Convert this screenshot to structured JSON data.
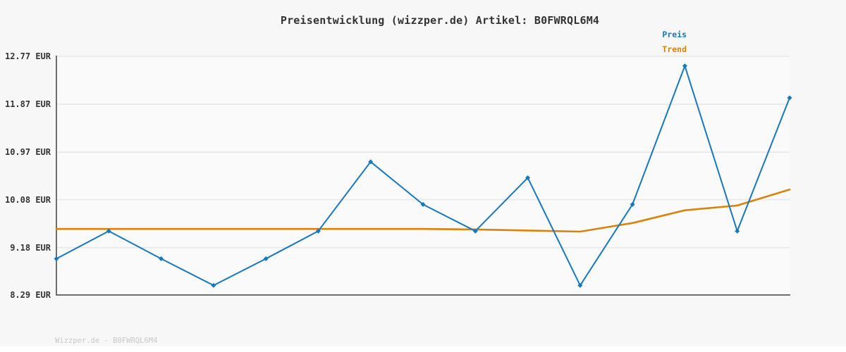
{
  "title": "Preisentwicklung (wizzper.de) Artikel: B0FWRQL6M4",
  "watermark": "Wizzper.de - B0FWRQL6M4",
  "colors": {
    "price_line": "#1878be",
    "trend_line": "#d9830f",
    "grid": "#e8e8e8",
    "axis": "#6e6e6e",
    "text": "#333333",
    "watermark": "#c9c9c9",
    "page_bg": "#f7f7f7",
    "plot_bg": "#fafafa",
    "footer_bg": "#ffffff"
  },
  "chart_data": {
    "type": "line",
    "x": [
      1,
      2,
      3,
      4,
      5,
      6,
      7,
      8,
      9,
      10,
      11,
      12,
      13,
      14,
      15
    ],
    "x_axis_labels_visible": false,
    "series": [
      {
        "name": "Preis",
        "color": "#1878be",
        "markers": true,
        "values": [
          8.97,
          9.49,
          8.97,
          8.47,
          8.97,
          9.49,
          10.79,
          9.99,
          9.49,
          10.49,
          8.47,
          9.99,
          12.59,
          9.49,
          11.99
        ]
      },
      {
        "name": "Trend",
        "color": "#d9830f",
        "markers": false,
        "values": [
          9.53,
          9.53,
          9.53,
          9.53,
          9.53,
          9.53,
          9.53,
          9.53,
          9.52,
          9.5,
          9.48,
          9.64,
          9.88,
          9.97,
          10.27
        ]
      }
    ],
    "unit": "EUR",
    "ylim": [
      8.29,
      12.77
    ],
    "yticks": [
      {
        "value": 12.77,
        "label": "12.77 EUR"
      },
      {
        "value": 11.87,
        "label": "11.87 EUR"
      },
      {
        "value": 10.97,
        "label": "10.97 EUR"
      },
      {
        "value": 10.08,
        "label": "10.08 EUR"
      },
      {
        "value": 9.18,
        "label": "9.18 EUR"
      },
      {
        "value": 8.29,
        "label": "8.29 EUR"
      }
    ],
    "grid": true,
    "legend_position": "top-right",
    "xlabel": "",
    "ylabel": ""
  }
}
